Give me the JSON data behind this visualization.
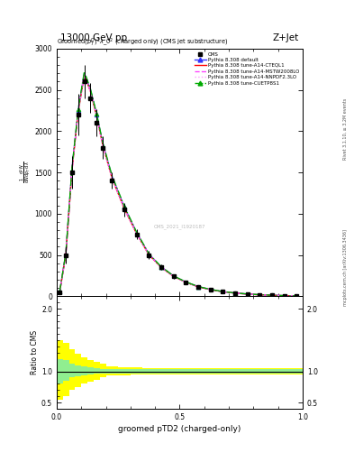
{
  "title_top": "13000 GeV pp",
  "title_right": "Z+Jet",
  "plot_title": "Groomed$(p_T^D)^2\\lambda\\_0^2$ (charged only) (CMS jet substructure)",
  "xlabel": "groomed pTD2 (charged-only)",
  "ylabel": "1 / mathrm dN / mathrm d p_T mathrm d lambda",
  "ylabel_ratio": "Ratio to CMS",
  "rivet_label": "Rivet 3.1.10, ≥ 3.2M events",
  "mcplots_label": "mcplots.cern.ch [arXiv:1306.3436]",
  "watermark": "CMS_2021_I1920187",
  "x_edges": [
    0.0,
    0.025,
    0.05,
    0.075,
    0.1,
    0.125,
    0.15,
    0.175,
    0.2,
    0.25,
    0.3,
    0.35,
    0.4,
    0.45,
    0.5,
    0.55,
    0.6,
    0.65,
    0.7,
    0.75,
    0.8,
    0.85,
    0.9,
    0.95,
    1.0
  ],
  "x_centers": [
    0.0125,
    0.0375,
    0.0625,
    0.0875,
    0.1125,
    0.1375,
    0.1625,
    0.1875,
    0.225,
    0.275,
    0.325,
    0.375,
    0.425,
    0.475,
    0.525,
    0.575,
    0.625,
    0.675,
    0.725,
    0.775,
    0.825,
    0.875,
    0.925,
    0.975
  ],
  "data_cms": [
    50,
    500,
    1500,
    2200,
    2600,
    2400,
    2100,
    1800,
    1400,
    1050,
    750,
    500,
    350,
    240,
    170,
    115,
    80,
    55,
    38,
    26,
    17,
    11,
    7,
    4
  ],
  "data_cms_err": [
    20,
    100,
    200,
    250,
    200,
    180,
    160,
    140,
    100,
    80,
    60,
    45,
    35,
    28,
    22,
    18,
    14,
    11,
    9,
    7,
    5,
    4,
    3,
    2
  ],
  "pythia_default": [
    55,
    520,
    1550,
    2250,
    2700,
    2500,
    2200,
    1850,
    1450,
    1080,
    770,
    510,
    355,
    245,
    172,
    117,
    82,
    56,
    39,
    27,
    18,
    12,
    7.5,
    4.5
  ],
  "pythia_cteql1": [
    52,
    510,
    1530,
    2230,
    2680,
    2480,
    2180,
    1830,
    1430,
    1060,
    758,
    502,
    349,
    241,
    169,
    115,
    80,
    55,
    38,
    26,
    17,
    11,
    7.2,
    4.3
  ],
  "pythia_mstw": [
    53,
    515,
    1540,
    2240,
    2690,
    2490,
    2190,
    1840,
    1440,
    1070,
    764,
    506,
    352,
    243,
    170,
    116,
    81,
    55.5,
    38.5,
    26.5,
    17.5,
    11.5,
    7.3,
    4.4
  ],
  "pythia_nnpdf": [
    51,
    505,
    1520,
    2220,
    2670,
    2470,
    2170,
    1820,
    1420,
    1052,
    752,
    498,
    346,
    239,
    168,
    114,
    79,
    54.5,
    37.5,
    25.5,
    16.5,
    10.5,
    7.0,
    4.2
  ],
  "pythia_cuetp": [
    57,
    530,
    1560,
    2260,
    2720,
    2510,
    2210,
    1860,
    1460,
    1090,
    776,
    514,
    358,
    247,
    174,
    118,
    83,
    57,
    40,
    28,
    19,
    12.5,
    8.0,
    4.7
  ],
  "colors": {
    "cms": "black",
    "default": "#3333ff",
    "cteql1": "#ff0000",
    "mstw": "#ff44ff",
    "nnpdf": "#ff99ff",
    "cuetp": "#00aa00"
  },
  "ratio_green_lo": [
    0.8,
    0.85,
    0.9,
    0.92,
    0.93,
    0.95,
    0.96,
    0.97,
    0.97,
    0.97,
    0.97,
    0.97,
    0.97,
    0.97,
    0.97,
    0.97,
    0.97,
    0.97,
    0.97,
    0.97,
    0.97,
    0.97,
    0.97,
    0.97
  ],
  "ratio_green_hi": [
    1.2,
    1.18,
    1.12,
    1.1,
    1.08,
    1.06,
    1.05,
    1.04,
    1.03,
    1.03,
    1.03,
    1.03,
    1.03,
    1.03,
    1.03,
    1.03,
    1.03,
    1.03,
    1.03,
    1.03,
    1.03,
    1.03,
    1.03,
    1.03
  ],
  "ratio_yellow_lo": [
    0.55,
    0.6,
    0.7,
    0.75,
    0.8,
    0.84,
    0.87,
    0.9,
    0.93,
    0.94,
    0.95,
    0.95,
    0.95,
    0.95,
    0.95,
    0.95,
    0.95,
    0.95,
    0.95,
    0.95,
    0.95,
    0.95,
    0.95,
    0.95
  ],
  "ratio_yellow_hi": [
    1.5,
    1.45,
    1.35,
    1.28,
    1.22,
    1.18,
    1.15,
    1.12,
    1.08,
    1.07,
    1.06,
    1.05,
    1.05,
    1.05,
    1.05,
    1.05,
    1.05,
    1.05,
    1.05,
    1.05,
    1.05,
    1.05,
    1.05,
    1.05
  ],
  "ylim_main": [
    0,
    3000
  ],
  "ylim_ratio": [
    0.4,
    2.2
  ],
  "xlim": [
    0.0,
    1.0
  ],
  "yticks_main": [
    0,
    500,
    1000,
    1500,
    2000,
    2500,
    3000
  ],
  "yticks_ratio": [
    0.5,
    1.0,
    2.0
  ],
  "xticks": [
    0.0,
    0.5,
    1.0
  ]
}
